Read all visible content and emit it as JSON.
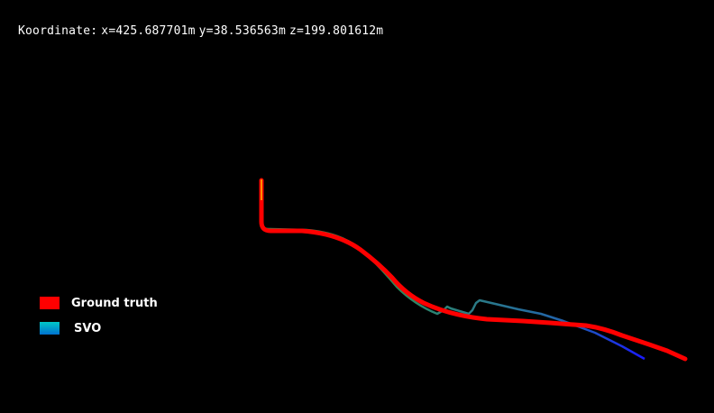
{
  "readout": {
    "label": "Koordinate:",
    "x": "x=425.687701m",
    "y": "y=38.536563m",
    "z": "z=199.801612m"
  },
  "legend": {
    "items": [
      {
        "label": "Ground truth",
        "color": "#ff0000"
      },
      {
        "label": "SVO",
        "color": "#00b4c8"
      }
    ]
  },
  "colors": {
    "background": "#000000",
    "ground_truth": "#ff0000",
    "svo_start": "#2e8b57",
    "svo_end": "#1a1aff"
  }
}
